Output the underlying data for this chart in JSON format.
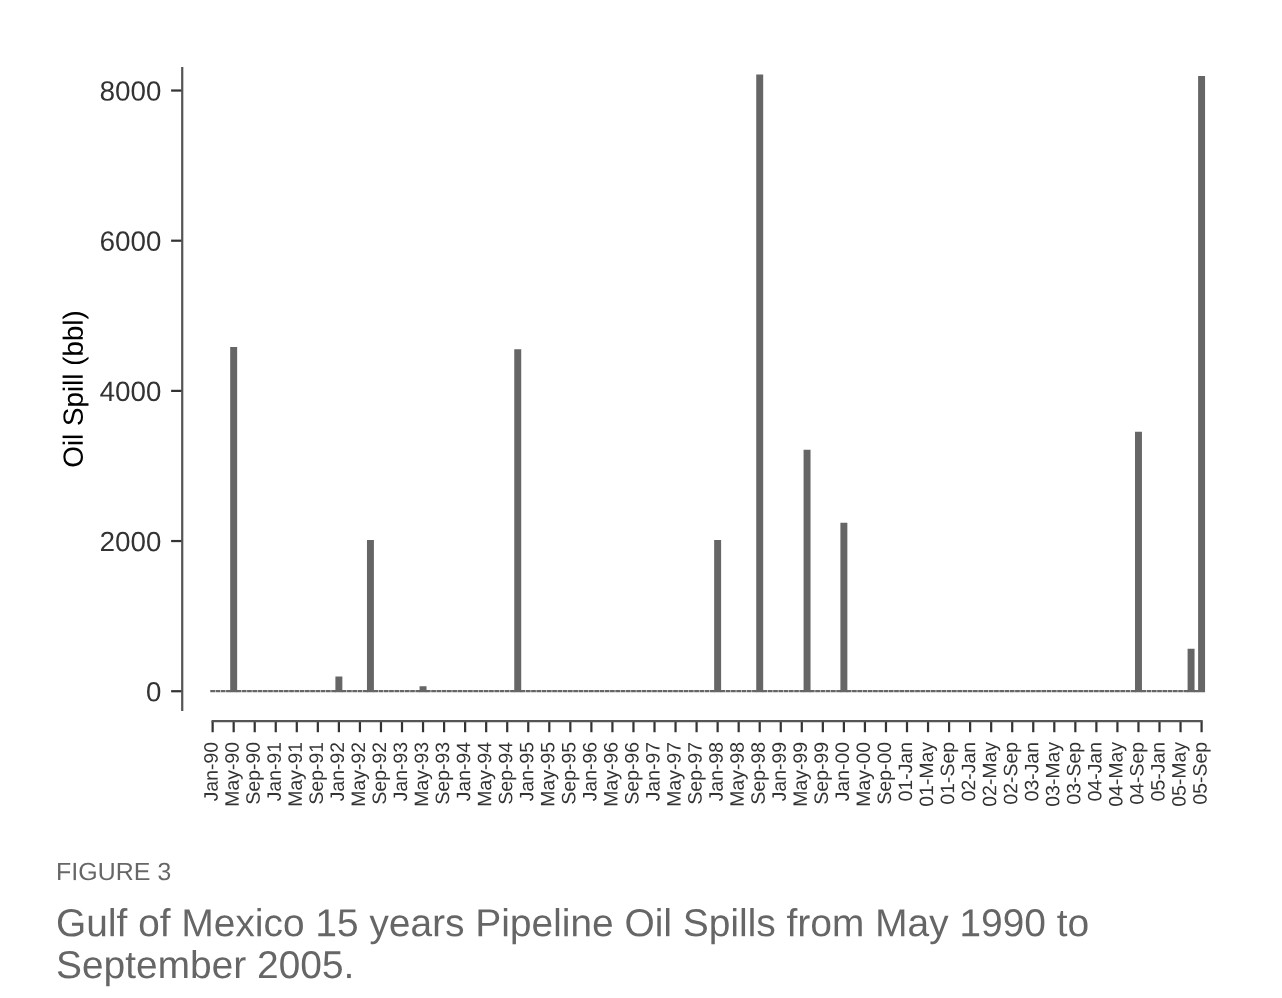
{
  "chart_data": {
    "type": "bar",
    "ylabel": "Oil Spill (bbl)",
    "categories": [
      "Jan-90",
      null,
      null,
      null,
      "May-90",
      null,
      null,
      null,
      "Sep-90",
      null,
      null,
      null,
      "Jan-91",
      null,
      null,
      null,
      "May-91",
      null,
      null,
      null,
      "Sep-91",
      null,
      null,
      null,
      "Jan-92",
      null,
      null,
      null,
      "May-92",
      null,
      null,
      null,
      "Sep-92",
      null,
      null,
      null,
      "Jan-93",
      null,
      null,
      null,
      "May-93",
      null,
      null,
      null,
      "Sep-93",
      null,
      null,
      null,
      "Jan-94",
      null,
      null,
      null,
      "May-94",
      null,
      null,
      null,
      "Sep-94",
      null,
      null,
      null,
      "Jan-95",
      null,
      null,
      null,
      "May-95",
      null,
      null,
      null,
      "Sep-95",
      null,
      null,
      null,
      "Jan-96",
      null,
      null,
      null,
      "May-96",
      null,
      null,
      null,
      "Sep-96",
      null,
      null,
      null,
      "Jan-97",
      null,
      null,
      null,
      "May-97",
      null,
      null,
      null,
      "Sep-97",
      null,
      null,
      null,
      "Jan-98",
      null,
      null,
      null,
      "May-98",
      null,
      null,
      null,
      "Sep-98",
      null,
      null,
      null,
      "Jan-99",
      null,
      null,
      null,
      "May-99",
      null,
      null,
      null,
      "Sep-99",
      null,
      null,
      null,
      "Jan-00",
      null,
      null,
      null,
      "May-00",
      null,
      null,
      null,
      "Sep-00",
      null,
      null,
      null,
      "01-Jan",
      null,
      null,
      null,
      "01-May",
      null,
      null,
      null,
      "01-Sep",
      null,
      null,
      null,
      "02-Jan",
      null,
      null,
      null,
      "02-May",
      null,
      null,
      null,
      "02-Sep",
      null,
      null,
      null,
      "03-Jan",
      null,
      null,
      null,
      "03-May",
      null,
      null,
      null,
      "03-Sep",
      null,
      null,
      null,
      "04-Jan",
      null,
      null,
      null,
      "04-May",
      null,
      null,
      null,
      "04-Sep",
      null,
      null,
      null,
      "05-Jan",
      null,
      null,
      null,
      "05-May",
      null,
      null,
      null,
      "05-Sep"
    ],
    "values": [
      0,
      0,
      0,
      0,
      4570,
      0,
      0,
      0,
      0,
      0,
      0,
      0,
      0,
      0,
      0,
      0,
      0,
      0,
      0,
      0,
      0,
      0,
      0,
      0,
      180,
      0,
      0,
      0,
      0,
      0,
      2000,
      0,
      0,
      0,
      0,
      0,
      0,
      0,
      0,
      0,
      50,
      0,
      0,
      0,
      0,
      0,
      0,
      0,
      0,
      0,
      0,
      0,
      0,
      0,
      0,
      0,
      0,
      0,
      4540,
      0,
      0,
      0,
      0,
      0,
      0,
      0,
      0,
      0,
      0,
      0,
      0,
      0,
      0,
      0,
      0,
      0,
      0,
      0,
      0,
      0,
      0,
      0,
      0,
      0,
      0,
      0,
      0,
      0,
      0,
      0,
      0,
      0,
      0,
      0,
      0,
      0,
      2000,
      0,
      0,
      0,
      0,
      0,
      0,
      0,
      8200,
      0,
      0,
      0,
      0,
      0,
      0,
      0,
      0,
      3200,
      0,
      0,
      0,
      0,
      0,
      0,
      2230,
      0,
      0,
      0,
      0,
      0,
      0,
      0,
      0,
      0,
      0,
      0,
      0,
      0,
      0,
      0,
      0,
      0,
      0,
      0,
      0,
      0,
      0,
      0,
      0,
      0,
      0,
      0,
      0,
      0,
      0,
      0,
      0,
      0,
      0,
      0,
      0,
      0,
      0,
      0,
      0,
      0,
      0,
      0,
      0,
      0,
      0,
      0,
      0,
      0,
      0,
      0,
      0,
      0,
      0,
      0,
      3440,
      0,
      0,
      0,
      0,
      0,
      0,
      0,
      0,
      0,
      550,
      0,
      8180
    ],
    "color": "#666666",
    "ylim": [
      -250,
      8300
    ],
    "yticks": [
      0,
      2000,
      4000,
      6000,
      8000
    ],
    "grid": false,
    "annotations": [
      "FIGURE 3",
      "Gulf of Mexico 15 years Pipeline Oil Spills from May 1990 to September 2005."
    ]
  }
}
